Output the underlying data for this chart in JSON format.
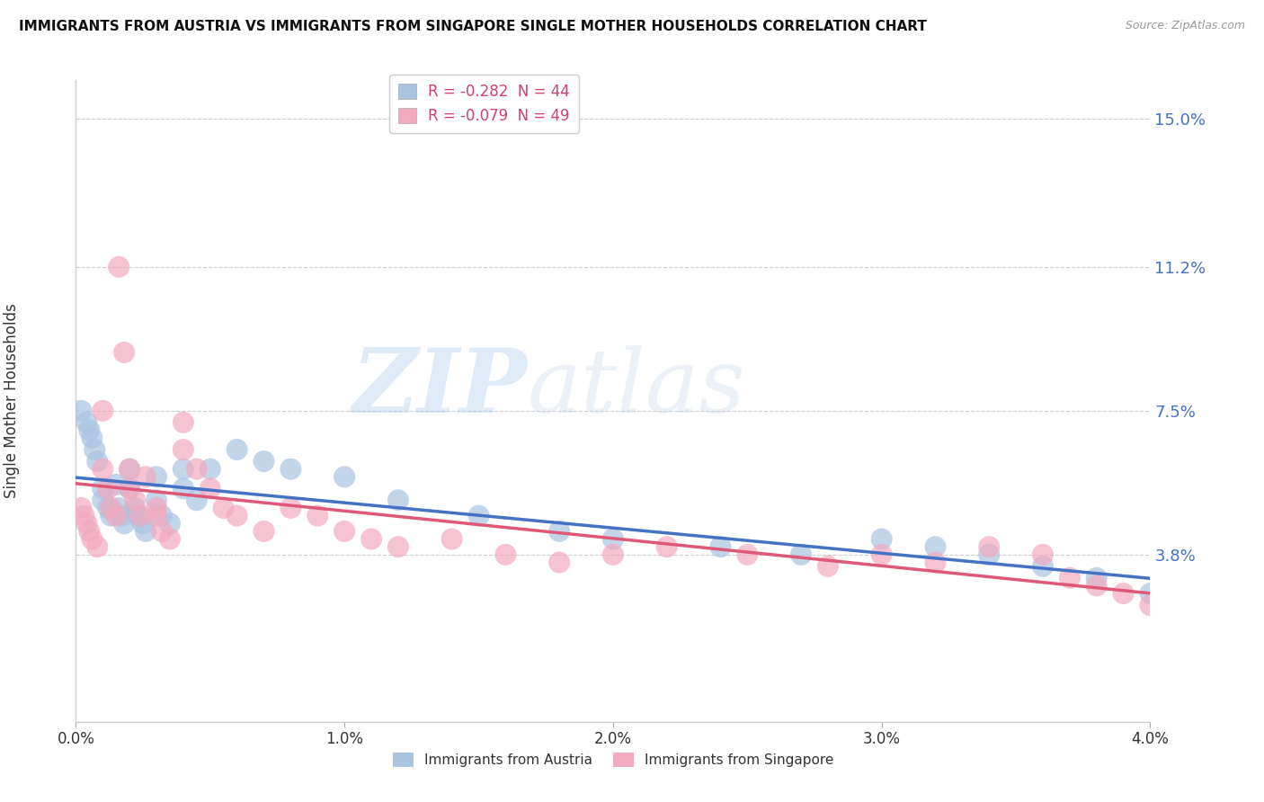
{
  "title": "IMMIGRANTS FROM AUSTRIA VS IMMIGRANTS FROM SINGAPORE SINGLE MOTHER HOUSEHOLDS CORRELATION CHART",
  "source": "Source: ZipAtlas.com",
  "ylabel": "Single Mother Households",
  "xlim": [
    0.0,
    0.04
  ],
  "ylim": [
    -0.005,
    0.16
  ],
  "ytick_labels": [
    "3.8%",
    "7.5%",
    "11.2%",
    "15.0%"
  ],
  "ytick_values": [
    0.038,
    0.075,
    0.112,
    0.15
  ],
  "xtick_labels": [
    "0.0%",
    "1.0%",
    "2.0%",
    "3.0%",
    "4.0%"
  ],
  "xtick_values": [
    0.0,
    0.01,
    0.02,
    0.03,
    0.04
  ],
  "legend_austria": "R = -0.282  N = 44",
  "legend_singapore": "R = -0.079  N = 49",
  "color_austria": "#aac4e0",
  "color_singapore": "#f2aac0",
  "line_color_austria": "#4472c4",
  "line_color_singapore": "#e05878",
  "watermark_zip": "ZIP",
  "watermark_atlas": "atlas",
  "austria_x": [
    0.0002,
    0.0004,
    0.0005,
    0.0006,
    0.0007,
    0.0008,
    0.001,
    0.001,
    0.0012,
    0.0013,
    0.0015,
    0.0016,
    0.0017,
    0.0018,
    0.002,
    0.002,
    0.0022,
    0.0023,
    0.0025,
    0.0026,
    0.003,
    0.003,
    0.0032,
    0.0035,
    0.004,
    0.004,
    0.0045,
    0.005,
    0.006,
    0.007,
    0.008,
    0.01,
    0.012,
    0.015,
    0.018,
    0.02,
    0.024,
    0.027,
    0.03,
    0.032,
    0.034,
    0.036,
    0.038,
    0.04
  ],
  "austria_y": [
    0.075,
    0.072,
    0.07,
    0.068,
    0.065,
    0.062,
    0.055,
    0.052,
    0.05,
    0.048,
    0.056,
    0.05,
    0.048,
    0.046,
    0.06,
    0.055,
    0.05,
    0.048,
    0.046,
    0.044,
    0.058,
    0.052,
    0.048,
    0.046,
    0.06,
    0.055,
    0.052,
    0.06,
    0.065,
    0.062,
    0.06,
    0.058,
    0.052,
    0.048,
    0.044,
    0.042,
    0.04,
    0.038,
    0.042,
    0.04,
    0.038,
    0.035,
    0.032,
    0.028
  ],
  "singapore_x": [
    0.0002,
    0.0003,
    0.0004,
    0.0005,
    0.0006,
    0.0008,
    0.001,
    0.001,
    0.0012,
    0.0013,
    0.0015,
    0.0016,
    0.0018,
    0.002,
    0.002,
    0.0022,
    0.0024,
    0.0026,
    0.003,
    0.003,
    0.0032,
    0.0035,
    0.004,
    0.004,
    0.0045,
    0.005,
    0.0055,
    0.006,
    0.007,
    0.008,
    0.009,
    0.01,
    0.011,
    0.012,
    0.014,
    0.016,
    0.018,
    0.02,
    0.022,
    0.025,
    0.028,
    0.03,
    0.032,
    0.034,
    0.036,
    0.037,
    0.038,
    0.039,
    0.04
  ],
  "singapore_y": [
    0.05,
    0.048,
    0.046,
    0.044,
    0.042,
    0.04,
    0.075,
    0.06,
    0.055,
    0.05,
    0.048,
    0.112,
    0.09,
    0.06,
    0.055,
    0.052,
    0.048,
    0.058,
    0.05,
    0.048,
    0.044,
    0.042,
    0.072,
    0.065,
    0.06,
    0.055,
    0.05,
    0.048,
    0.044,
    0.05,
    0.048,
    0.044,
    0.042,
    0.04,
    0.042,
    0.038,
    0.036,
    0.038,
    0.04,
    0.038,
    0.035,
    0.038,
    0.036,
    0.04,
    0.038,
    0.032,
    0.03,
    0.028,
    0.025
  ]
}
